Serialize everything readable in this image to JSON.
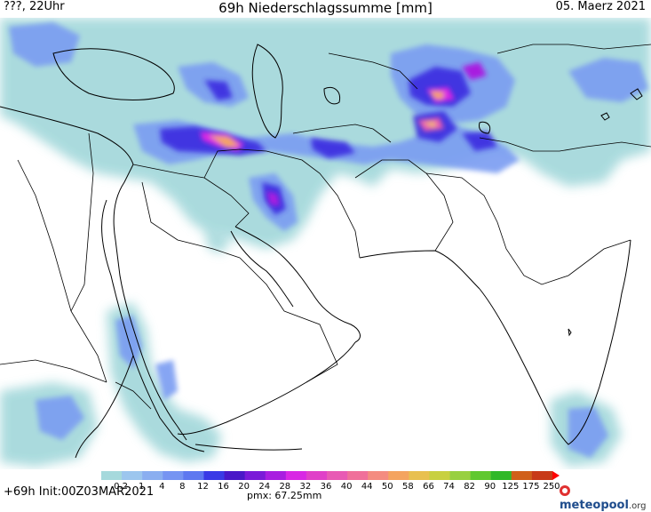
{
  "header": {
    "left": "???, 22Uhr",
    "title": "69h Niederschlagssumme [mm]",
    "date": "05. Maerz 2021"
  },
  "footer": {
    "run": "+69h Init:00Z03MAR2021",
    "pmx": "pmx: 67.25mm",
    "logo_main": "meteopool",
    "logo_tld": ".org"
  },
  "legend": {
    "labels": [
      "0.2",
      "1",
      "4",
      "8",
      "12",
      "16",
      "20",
      "24",
      "28",
      "32",
      "36",
      "40",
      "44",
      "50",
      "58",
      "66",
      "74",
      "82",
      "90",
      "125",
      "175",
      "250"
    ],
    "colors": [
      "#a6d9dc",
      "#9cc6ee",
      "#8aaef0",
      "#7694f2",
      "#5e78f0",
      "#3a3ae6",
      "#4a18c8",
      "#7a1ad8",
      "#a81ee0",
      "#d828e4",
      "#e040c8",
      "#e85ab4",
      "#f0709a",
      "#f48c80",
      "#f4a460",
      "#e8c050",
      "#c8d040",
      "#98d040",
      "#60c830",
      "#30b828",
      "#d0601a",
      "#c83a18"
    ],
    "arrow_color": "#ff0000"
  }
}
